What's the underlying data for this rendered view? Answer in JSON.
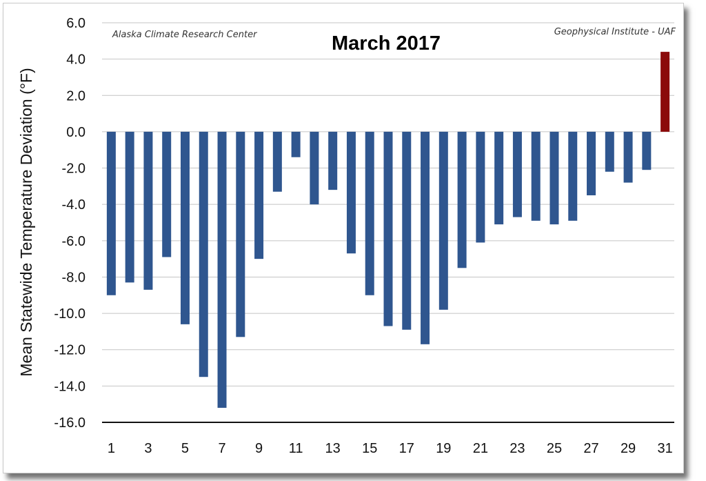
{
  "chart_data": {
    "type": "bar",
    "title": "March 2017",
    "credit_left": "Alaska Climate Research Center",
    "credit_right": "Geophysical Institute - UAF",
    "ylabel": "Mean Statewide Temperature Deviation (°F)",
    "xlabel": "",
    "ylim": [
      -16,
      6
    ],
    "yticks": [
      6,
      4,
      2,
      0,
      -2,
      -4,
      -6,
      -8,
      -10,
      -12,
      -14,
      -16
    ],
    "ytick_labels": [
      "6.0",
      "4.0",
      "2.0",
      "0.0",
      "-2.0",
      "-4.0",
      "-6.0",
      "-8.0",
      "-10.0",
      "-12.0",
      "-14.0",
      "-16.0"
    ],
    "x_tick_labels": [
      "1",
      "3",
      "5",
      "7",
      "9",
      "11",
      "13",
      "15",
      "17",
      "19",
      "21",
      "23",
      "25",
      "27",
      "29",
      "31"
    ],
    "categories": [
      "1",
      "2",
      "3",
      "4",
      "5",
      "6",
      "7",
      "8",
      "9",
      "10",
      "11",
      "12",
      "13",
      "14",
      "15",
      "16",
      "17",
      "18",
      "19",
      "20",
      "21",
      "22",
      "23",
      "24",
      "25",
      "26",
      "27",
      "28",
      "29",
      "30",
      "31"
    ],
    "values": [
      -9.0,
      -8.3,
      -8.7,
      -6.9,
      -10.6,
      -13.5,
      -15.2,
      -11.3,
      -7.0,
      -3.3,
      -1.4,
      -4.0,
      -3.2,
      -6.7,
      -9.0,
      -10.7,
      -10.9,
      -11.7,
      -9.8,
      -7.5,
      -6.1,
      -5.1,
      -4.7,
      -4.9,
      -5.1,
      -4.9,
      -3.5,
      -2.2,
      -2.8,
      -2.1,
      4.4
    ],
    "colors": {
      "negative": "#2f568f",
      "positive": "#8b0a0a",
      "grid": "#c4c4c4",
      "axis": "#111111"
    },
    "grid": true,
    "legend": "none"
  }
}
